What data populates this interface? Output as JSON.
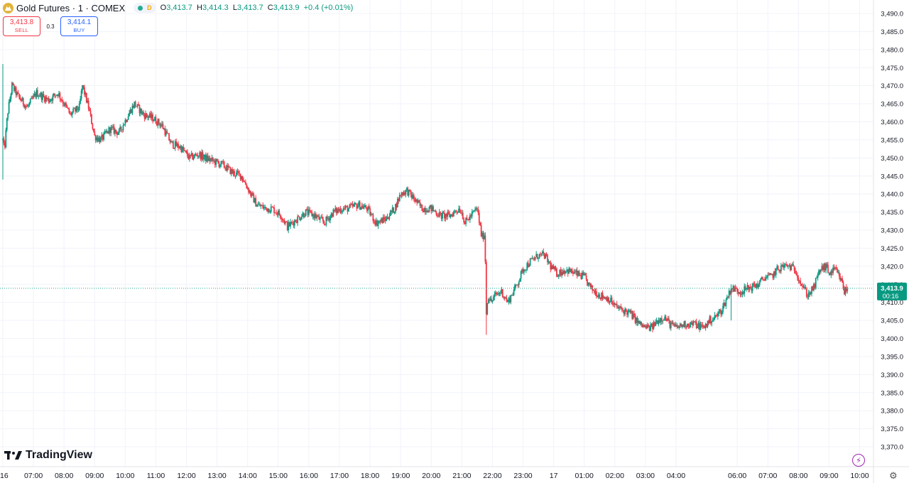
{
  "header": {
    "title": "Gold Futures · 1 · COMEX",
    "status_letter": "D",
    "open_label": "O",
    "open": "3,413.7",
    "high_label": "H",
    "high": "3,414.3",
    "low_label": "L",
    "low": "3,413.7",
    "close_label": "C",
    "close": "3,413.9",
    "change": "+0.4 (+0.01%)"
  },
  "trade": {
    "sell_price": "3,413.8",
    "sell_label": "SELL",
    "spread": "0.3",
    "buy_price": "3,414.1",
    "buy_label": "BUY"
  },
  "brand": {
    "logo_text": "TradingView"
  },
  "icons": {
    "symbol": "gold-coin-icon",
    "status": "market-open-dot-icon",
    "brand": "tradingview-logo-icon",
    "lightning": "lightning-icon",
    "settings": "gear-icon"
  },
  "colors": {
    "up": "#089981",
    "down": "#f23645",
    "price_label_bg": "#089981",
    "last_price_line": "#22ab94"
  },
  "chart_data": {
    "type": "candlestick",
    "y_range": [
      3370,
      3490
    ],
    "y_ticks": [
      "3,490.0",
      "3,485.0",
      "3,480.0",
      "3,475.0",
      "3,470.0",
      "3,465.0",
      "3,460.0",
      "3,455.0",
      "3,450.0",
      "3,445.0",
      "3,440.0",
      "3,435.0",
      "3,430.0",
      "3,425.0",
      "3,420.0",
      "3,415.0",
      "3,410.0",
      "3,405.0",
      "3,400.0",
      "3,395.0",
      "3,390.0",
      "3,385.0",
      "3,380.0",
      "3,375.0",
      "3,370.0"
    ],
    "y_tick_values": [
      3490,
      3485,
      3480,
      3475,
      3470,
      3465,
      3460,
      3455,
      3450,
      3445,
      3440,
      3435,
      3430,
      3425,
      3420,
      3415,
      3410,
      3405,
      3400,
      3395,
      3390,
      3385,
      3380,
      3375,
      3370
    ],
    "x_ticks": [
      "16",
      "07:00",
      "08:00",
      "09:00",
      "10:00",
      "11:00",
      "12:00",
      "13:00",
      "14:00",
      "15:00",
      "16:00",
      "17:00",
      "18:00",
      "19:00",
      "20:00",
      "21:00",
      "22:00",
      "23:00",
      "17",
      "01:00",
      "02:00",
      "03:00",
      "04:00",
      "06:00",
      "07:00",
      "08:00",
      "09:00",
      "10:00"
    ],
    "x_tick_hours": [
      6,
      7,
      8,
      9,
      10,
      11,
      12,
      13,
      14,
      15,
      16,
      17,
      18,
      19,
      20,
      21,
      22,
      23,
      24,
      25,
      26,
      27,
      28,
      30,
      31,
      32,
      33,
      34
    ],
    "x_range_hours": [
      6,
      34.65
    ],
    "last_price": 3413.9,
    "last_price_label": "3,413.9",
    "countdown": "00:16",
    "price_path": [
      [
        6.0,
        3455
      ],
      [
        6.05,
        3452
      ],
      [
        6.15,
        3462
      ],
      [
        6.3,
        3470
      ],
      [
        6.5,
        3467
      ],
      [
        6.8,
        3464
      ],
      [
        7.1,
        3468
      ],
      [
        7.5,
        3466
      ],
      [
        7.8,
        3468
      ],
      [
        8.2,
        3462
      ],
      [
        8.5,
        3464
      ],
      [
        8.6,
        3470
      ],
      [
        8.8,
        3464
      ],
      [
        9.0,
        3456
      ],
      [
        9.2,
        3455
      ],
      [
        9.5,
        3458
      ],
      [
        9.8,
        3457
      ],
      [
        10.1,
        3462
      ],
      [
        10.3,
        3465
      ],
      [
        10.6,
        3462
      ],
      [
        10.9,
        3461
      ],
      [
        11.2,
        3459
      ],
      [
        11.5,
        3454
      ],
      [
        11.8,
        3453
      ],
      [
        12.1,
        3450
      ],
      [
        12.4,
        3451
      ],
      [
        12.6,
        3450
      ],
      [
        12.9,
        3449
      ],
      [
        13.2,
        3448
      ],
      [
        13.5,
        3446
      ],
      [
        13.8,
        3445
      ],
      [
        14.1,
        3440
      ],
      [
        14.3,
        3437
      ],
      [
        14.6,
        3436
      ],
      [
        14.8,
        3436
      ],
      [
        15.1,
        3434
      ],
      [
        15.3,
        3431
      ],
      [
        15.6,
        3433
      ],
      [
        15.9,
        3435
      ],
      [
        16.2,
        3434
      ],
      [
        16.5,
        3432
      ],
      [
        16.8,
        3435
      ],
      [
        17.1,
        3436
      ],
      [
        17.3,
        3436
      ],
      [
        17.6,
        3437
      ],
      [
        17.9,
        3436
      ],
      [
        18.2,
        3432
      ],
      [
        18.5,
        3433
      ],
      [
        18.8,
        3436
      ],
      [
        19.0,
        3440
      ],
      [
        19.2,
        3441
      ],
      [
        19.4,
        3439
      ],
      [
        19.7,
        3436
      ],
      [
        20.0,
        3436
      ],
      [
        20.3,
        3434
      ],
      [
        20.6,
        3434
      ],
      [
        20.9,
        3436
      ],
      [
        21.0,
        3435
      ],
      [
        21.1,
        3432
      ],
      [
        21.3,
        3434
      ],
      [
        21.5,
        3436
      ],
      [
        21.65,
        3428
      ],
      [
        21.75,
        3429
      ],
      [
        21.8,
        3407
      ],
      [
        21.85,
        3412
      ],
      [
        21.95,
        3410
      ],
      [
        22.1,
        3412
      ],
      [
        22.3,
        3413
      ],
      [
        22.5,
        3410
      ],
      [
        22.8,
        3415
      ],
      [
        23.0,
        3419
      ],
      [
        23.2,
        3421
      ],
      [
        23.5,
        3423
      ],
      [
        23.7,
        3423
      ],
      [
        23.9,
        3420
      ],
      [
        24.1,
        3418
      ],
      [
        24.4,
        3419
      ],
      [
        24.7,
        3418
      ],
      [
        25.0,
        3417
      ],
      [
        25.2,
        3414
      ],
      [
        25.5,
        3412
      ],
      [
        25.8,
        3411
      ],
      [
        26.0,
        3409
      ],
      [
        26.2,
        3408
      ],
      [
        26.5,
        3407
      ],
      [
        26.8,
        3404
      ],
      [
        27.0,
        3403
      ],
      [
        27.2,
        3403
      ],
      [
        27.4,
        3405
      ],
      [
        27.6,
        3406
      ],
      [
        27.8,
        3404
      ],
      [
        28.0,
        3403
      ],
      [
        28.3,
        3404
      ],
      [
        28.6,
        3404
      ],
      [
        28.9,
        3403
      ],
      [
        29.1,
        3405
      ],
      [
        29.3,
        3406
      ],
      [
        29.5,
        3408
      ],
      [
        29.8,
        3414
      ],
      [
        30.1,
        3413
      ],
      [
        30.4,
        3414
      ],
      [
        30.7,
        3415
      ],
      [
        30.9,
        3417
      ],
      [
        31.1,
        3417
      ],
      [
        31.3,
        3419
      ],
      [
        31.5,
        3420
      ],
      [
        31.7,
        3420
      ],
      [
        31.9,
        3419
      ],
      [
        32.1,
        3415
      ],
      [
        32.3,
        3412
      ],
      [
        32.5,
        3414
      ],
      [
        32.7,
        3419
      ],
      [
        32.9,
        3420
      ],
      [
        33.0,
        3418
      ],
      [
        33.2,
        3419
      ],
      [
        33.4,
        3416
      ],
      [
        33.5,
        3413
      ],
      [
        33.6,
        3413.9
      ]
    ],
    "wick_extremes": [
      [
        6.0,
        3476,
        3444
      ],
      [
        21.8,
        3420,
        3401
      ],
      [
        29.8,
        3415,
        3405
      ]
    ]
  }
}
